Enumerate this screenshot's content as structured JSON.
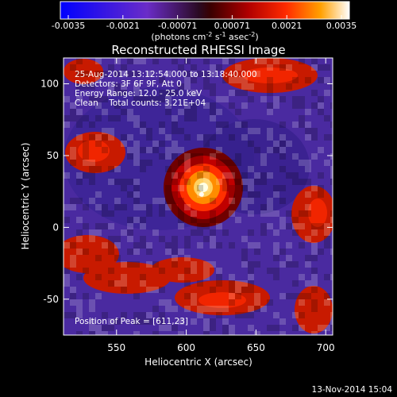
{
  "chart_data": {
    "type": "heatmap",
    "title": "Reconstructed RHESSI Image",
    "xlabel": "Heliocentric X (arcsec)",
    "ylabel": "Heliocentric Y (arcsec)",
    "xlim": [
      512,
      705
    ],
    "ylim": [
      -75,
      118
    ],
    "xticks": [
      550,
      600,
      650,
      700
    ],
    "yticks": [
      -50,
      0,
      50,
      100
    ],
    "colorbar": {
      "ticks": [
        "-0.0035",
        "-0.0021",
        "-0.00071",
        "0.00071",
        "0.0021",
        "0.0035"
      ],
      "range": [
        -0.0035,
        0.0035
      ],
      "unit_text": "(photons cm",
      "unit_sup1": "-2",
      "unit_mid1": " s",
      "unit_sup2": "-1",
      "unit_mid2": " asec",
      "unit_sup3": "-2",
      "unit_end": ")"
    },
    "annotations": {
      "time": "25-Aug-2014 13:12:54.000 to 13:18:40.000",
      "detectors": "Detectors: 3F 6F 9F, Att 0",
      "energy": "Energy Range: 12.0 - 25.0 keV",
      "clean": "Clean    Total counts: 3.21E+04",
      "peak": "Position of Peak = [611,23]"
    },
    "peak": {
      "x": 611,
      "y": 23,
      "value": 0.0035
    },
    "date_stamp": "13-Nov-2014 15:04"
  }
}
